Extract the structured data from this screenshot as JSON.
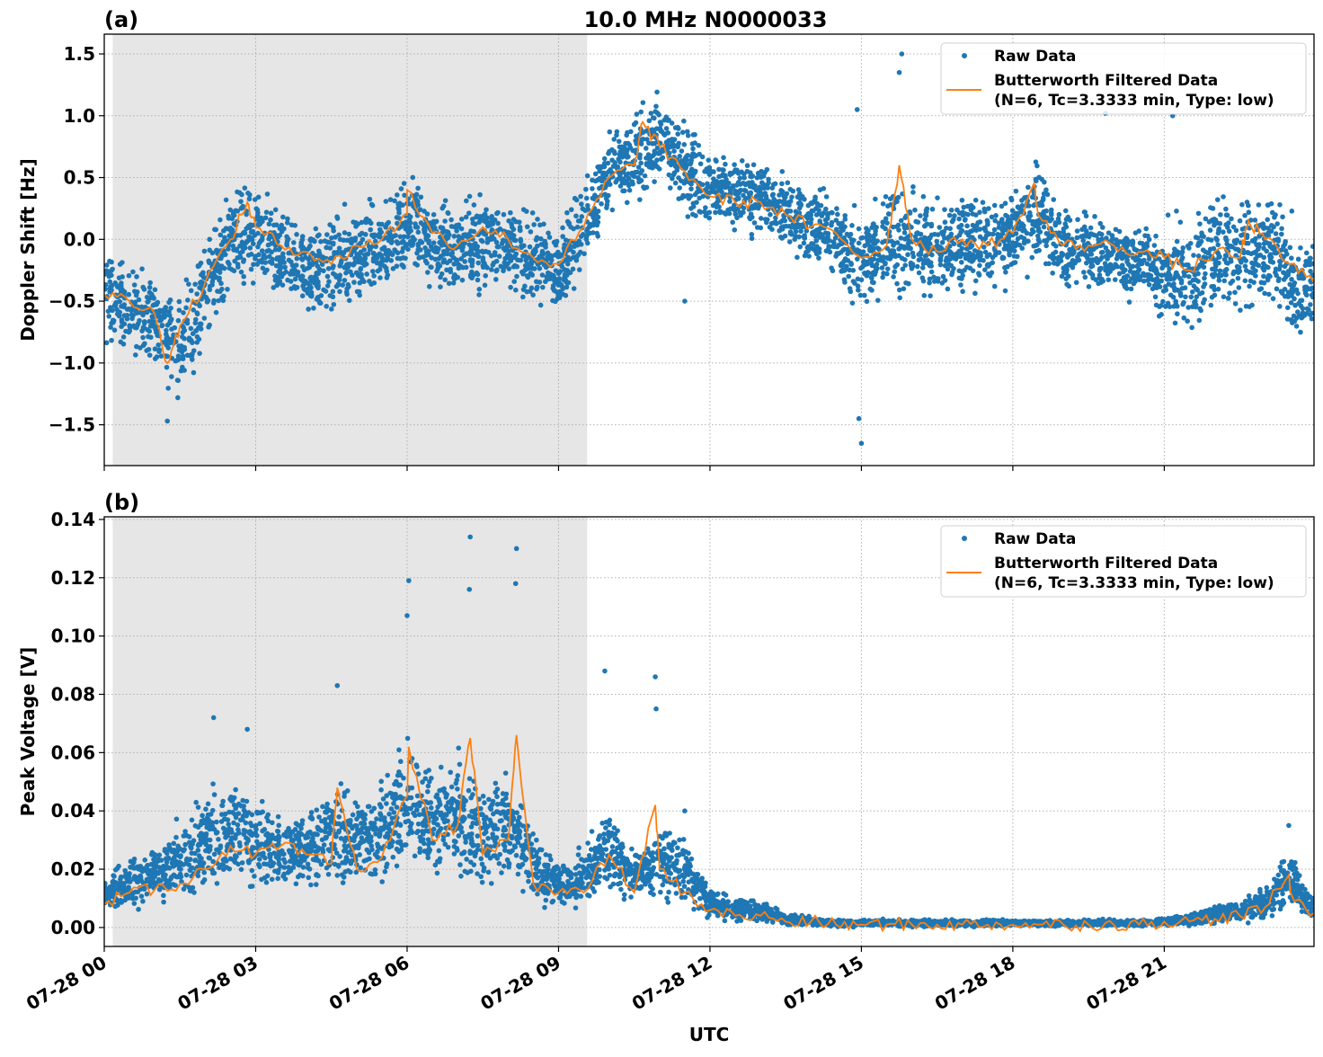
{
  "title": "10.0 MHz N0000033",
  "xlabel": "UTC",
  "x_tick_labels": [
    "07-28 00",
    "07-28 03",
    "07-28 06",
    "07-28 09",
    "07-28 12",
    "07-28 15",
    "07-28 18",
    "07-28 21"
  ],
  "x_tick_times": [
    "00:00",
    "03:00",
    "06:00",
    "09:00",
    "12:00",
    "15:00",
    "18:00",
    "21:00"
  ],
  "xlim": [
    "00:00",
    "23:58"
  ],
  "shaded_span": [
    "00:10",
    "09:34"
  ],
  "colors": {
    "raw": "#1f77b4",
    "filtered": "#ff7f0e",
    "shade": "#e6e6e6"
  },
  "legend": {
    "raw": "Raw Data",
    "filtered_line1": "Butterworth Filtered Data",
    "filtered_line2": "(N=6, Tc=3.3333 min, Type: low)",
    "placement": "top-right"
  },
  "chart_data": [
    {
      "type": "scatter+line",
      "panel_label": "(a)",
      "ylabel": "Doppler Shift [Hz]",
      "ylim": [
        -1.83,
        1.66
      ],
      "yticks": [
        -1.5,
        -1.0,
        -0.5,
        0.0,
        0.5,
        1.0,
        1.5
      ],
      "ytick_labels": [
        "−1.5",
        "−1.0",
        "−0.5",
        "0.0",
        "0.5",
        "1.0",
        "1.5"
      ],
      "grid": true,
      "times": [
        "00:00",
        "00:30",
        "01:00",
        "01:30",
        "02:00",
        "02:30",
        "03:00",
        "03:30",
        "04:00",
        "04:30",
        "05:00",
        "05:30",
        "06:00",
        "06:30",
        "07:00",
        "07:30",
        "08:00",
        "08:30",
        "09:00",
        "09:30",
        "10:00",
        "10:30",
        "11:00",
        "11:30",
        "12:00",
        "12:30",
        "13:00",
        "13:30",
        "14:00",
        "14:30",
        "15:00",
        "15:30",
        "16:00",
        "16:30",
        "17:00",
        "17:30",
        "18:00",
        "18:30",
        "19:00",
        "19:30",
        "20:00",
        "20:30",
        "21:00",
        "21:30",
        "22:00",
        "22:30",
        "23:00",
        "23:30",
        "23:58"
      ],
      "filtered": [
        -0.45,
        -0.5,
        -0.6,
        -0.7,
        -0.35,
        0.0,
        0.1,
        -0.05,
        -0.1,
        -0.2,
        -0.05,
        0.0,
        0.2,
        0.05,
        -0.05,
        0.1,
        0.0,
        -0.15,
        -0.2,
        0.1,
        0.5,
        0.6,
        0.75,
        0.55,
        0.35,
        0.3,
        0.3,
        0.2,
        0.1,
        0.05,
        -0.15,
        -0.05,
        0.0,
        -0.1,
        0.0,
        -0.05,
        0.05,
        0.2,
        -0.05,
        -0.05,
        -0.05,
        -0.1,
        -0.15,
        -0.25,
        -0.1,
        -0.15,
        0.0,
        -0.2,
        -0.35
      ],
      "filtered_peaks": [
        [
          "01:15",
          -1.0
        ],
        [
          "02:50",
          0.3
        ],
        [
          "06:00",
          0.4
        ],
        [
          "10:40",
          0.95
        ],
        [
          "15:45",
          0.6
        ],
        [
          "18:25",
          0.45
        ],
        [
          "22:40",
          0.15
        ]
      ],
      "raw_low": [
        -0.95,
        -1.0,
        -1.1,
        -1.45,
        -0.9,
        -0.5,
        -0.5,
        -0.6,
        -0.75,
        -0.8,
        -0.6,
        -0.55,
        -0.4,
        -0.55,
        -0.6,
        -0.5,
        -0.5,
        -0.65,
        -0.7,
        -0.3,
        0.1,
        0.2,
        0.3,
        0.1,
        0.0,
        -0.05,
        -0.05,
        -0.15,
        -0.3,
        -0.4,
        -0.8,
        -0.6,
        -0.5,
        -0.6,
        -0.5,
        -0.55,
        -0.4,
        -0.3,
        -0.5,
        -0.5,
        -0.55,
        -0.6,
        -0.8,
        -0.9,
        -0.7,
        -0.75,
        -0.6,
        -0.9,
        -0.8
      ],
      "raw_high": [
        0.0,
        -0.1,
        -0.2,
        -0.3,
        0.1,
        0.5,
        0.55,
        0.3,
        0.25,
        0.3,
        0.4,
        0.4,
        0.7,
        0.5,
        0.4,
        0.5,
        0.4,
        0.3,
        0.2,
        0.6,
        0.95,
        1.1,
        1.3,
        1.05,
        0.85,
        0.8,
        0.75,
        0.6,
        0.5,
        0.45,
        0.3,
        0.6,
        0.5,
        0.4,
        0.5,
        0.4,
        0.55,
        0.7,
        0.3,
        0.3,
        0.3,
        0.25,
        0.2,
        0.3,
        0.5,
        0.6,
        0.5,
        0.3,
        0.1
      ],
      "raw_outliers": [
        [
          "01:15",
          -1.47
        ],
        [
          "15:00",
          -1.65
        ],
        [
          "14:57",
          -1.45
        ],
        [
          "15:48",
          1.5
        ],
        [
          "15:45",
          1.35
        ],
        [
          "14:55",
          1.05
        ],
        [
          "19:50",
          1.02
        ],
        [
          "21:10",
          1.0
        ],
        [
          "11:30",
          -0.5
        ]
      ]
    },
    {
      "type": "scatter+line",
      "panel_label": "(b)",
      "ylabel": "Peak Voltage [V]",
      "ylim": [
        -0.0065,
        0.1409
      ],
      "yticks": [
        0.0,
        0.02,
        0.04,
        0.06,
        0.08,
        0.1,
        0.12,
        0.14
      ],
      "ytick_labels": [
        "0.00",
        "0.02",
        "0.04",
        "0.06",
        "0.08",
        "0.10",
        "0.12",
        "0.14"
      ],
      "grid": true,
      "times": [
        "00:00",
        "00:30",
        "01:00",
        "01:30",
        "02:00",
        "02:30",
        "03:00",
        "03:30",
        "04:00",
        "04:30",
        "05:00",
        "05:30",
        "06:00",
        "06:30",
        "07:00",
        "07:30",
        "08:00",
        "08:30",
        "09:00",
        "09:30",
        "10:00",
        "10:30",
        "11:00",
        "11:30",
        "12:00",
        "12:30",
        "13:00",
        "13:30",
        "14:00",
        "14:30",
        "15:00",
        "15:30",
        "16:00",
        "16:30",
        "17:00",
        "17:30",
        "18:00",
        "18:30",
        "19:00",
        "19:30",
        "20:00",
        "20:30",
        "21:00",
        "21:30",
        "22:00",
        "22:30",
        "23:00",
        "23:30",
        "23:58"
      ],
      "filtered": [
        0.008,
        0.012,
        0.013,
        0.015,
        0.02,
        0.028,
        0.025,
        0.028,
        0.025,
        0.022,
        0.02,
        0.024,
        0.045,
        0.03,
        0.035,
        0.025,
        0.03,
        0.015,
        0.012,
        0.012,
        0.025,
        0.012,
        0.02,
        0.012,
        0.006,
        0.004,
        0.004,
        0.002,
        0.002,
        0.001,
        0.001,
        0.001,
        0.001,
        0.001,
        0.001,
        0.001,
        0.001,
        0.001,
        0.001,
        0.001,
        0.001,
        0.001,
        0.002,
        0.002,
        0.003,
        0.004,
        0.007,
        0.012,
        0.005
      ],
      "filtered_peaks": [
        [
          "04:37",
          0.048
        ],
        [
          "06:02",
          0.062
        ],
        [
          "07:15",
          0.065
        ],
        [
          "08:10",
          0.066
        ],
        [
          "10:55",
          0.042
        ],
        [
          "23:28",
          0.018
        ]
      ],
      "raw_low": [
        0.003,
        0.005,
        0.006,
        0.007,
        0.008,
        0.012,
        0.01,
        0.012,
        0.01,
        0.01,
        0.01,
        0.01,
        0.015,
        0.012,
        0.012,
        0.01,
        0.01,
        0.006,
        0.005,
        0.005,
        0.01,
        0.006,
        0.006,
        0.005,
        0.002,
        0.001,
        0.001,
        0.0,
        0.0,
        0.0,
        0.0,
        0.0,
        0.0,
        0.0,
        0.0,
        0.0,
        0.0,
        0.0,
        0.0,
        0.0,
        0.0,
        0.0,
        0.0,
        0.0,
        0.001,
        0.001,
        0.002,
        0.004,
        0.002
      ],
      "raw_high": [
        0.02,
        0.025,
        0.03,
        0.04,
        0.05,
        0.055,
        0.05,
        0.04,
        0.045,
        0.055,
        0.05,
        0.055,
        0.075,
        0.06,
        0.065,
        0.05,
        0.06,
        0.035,
        0.025,
        0.03,
        0.045,
        0.028,
        0.04,
        0.035,
        0.015,
        0.012,
        0.01,
        0.006,
        0.004,
        0.003,
        0.003,
        0.003,
        0.003,
        0.003,
        0.003,
        0.003,
        0.003,
        0.003,
        0.003,
        0.003,
        0.003,
        0.003,
        0.004,
        0.005,
        0.008,
        0.01,
        0.015,
        0.03,
        0.01
      ],
      "raw_outliers": [
        [
          "04:37",
          0.083
        ],
        [
          "06:02",
          0.119
        ],
        [
          "06:00",
          0.107
        ],
        [
          "07:15",
          0.134
        ],
        [
          "07:14",
          0.116
        ],
        [
          "08:10",
          0.13
        ],
        [
          "08:09",
          0.118
        ],
        [
          "09:55",
          0.088
        ],
        [
          "10:55",
          0.086
        ],
        [
          "10:56",
          0.075
        ],
        [
          "02:10",
          0.072
        ],
        [
          "02:50",
          0.068
        ],
        [
          "11:30",
          0.04
        ],
        [
          "23:28",
          0.035
        ]
      ]
    }
  ]
}
